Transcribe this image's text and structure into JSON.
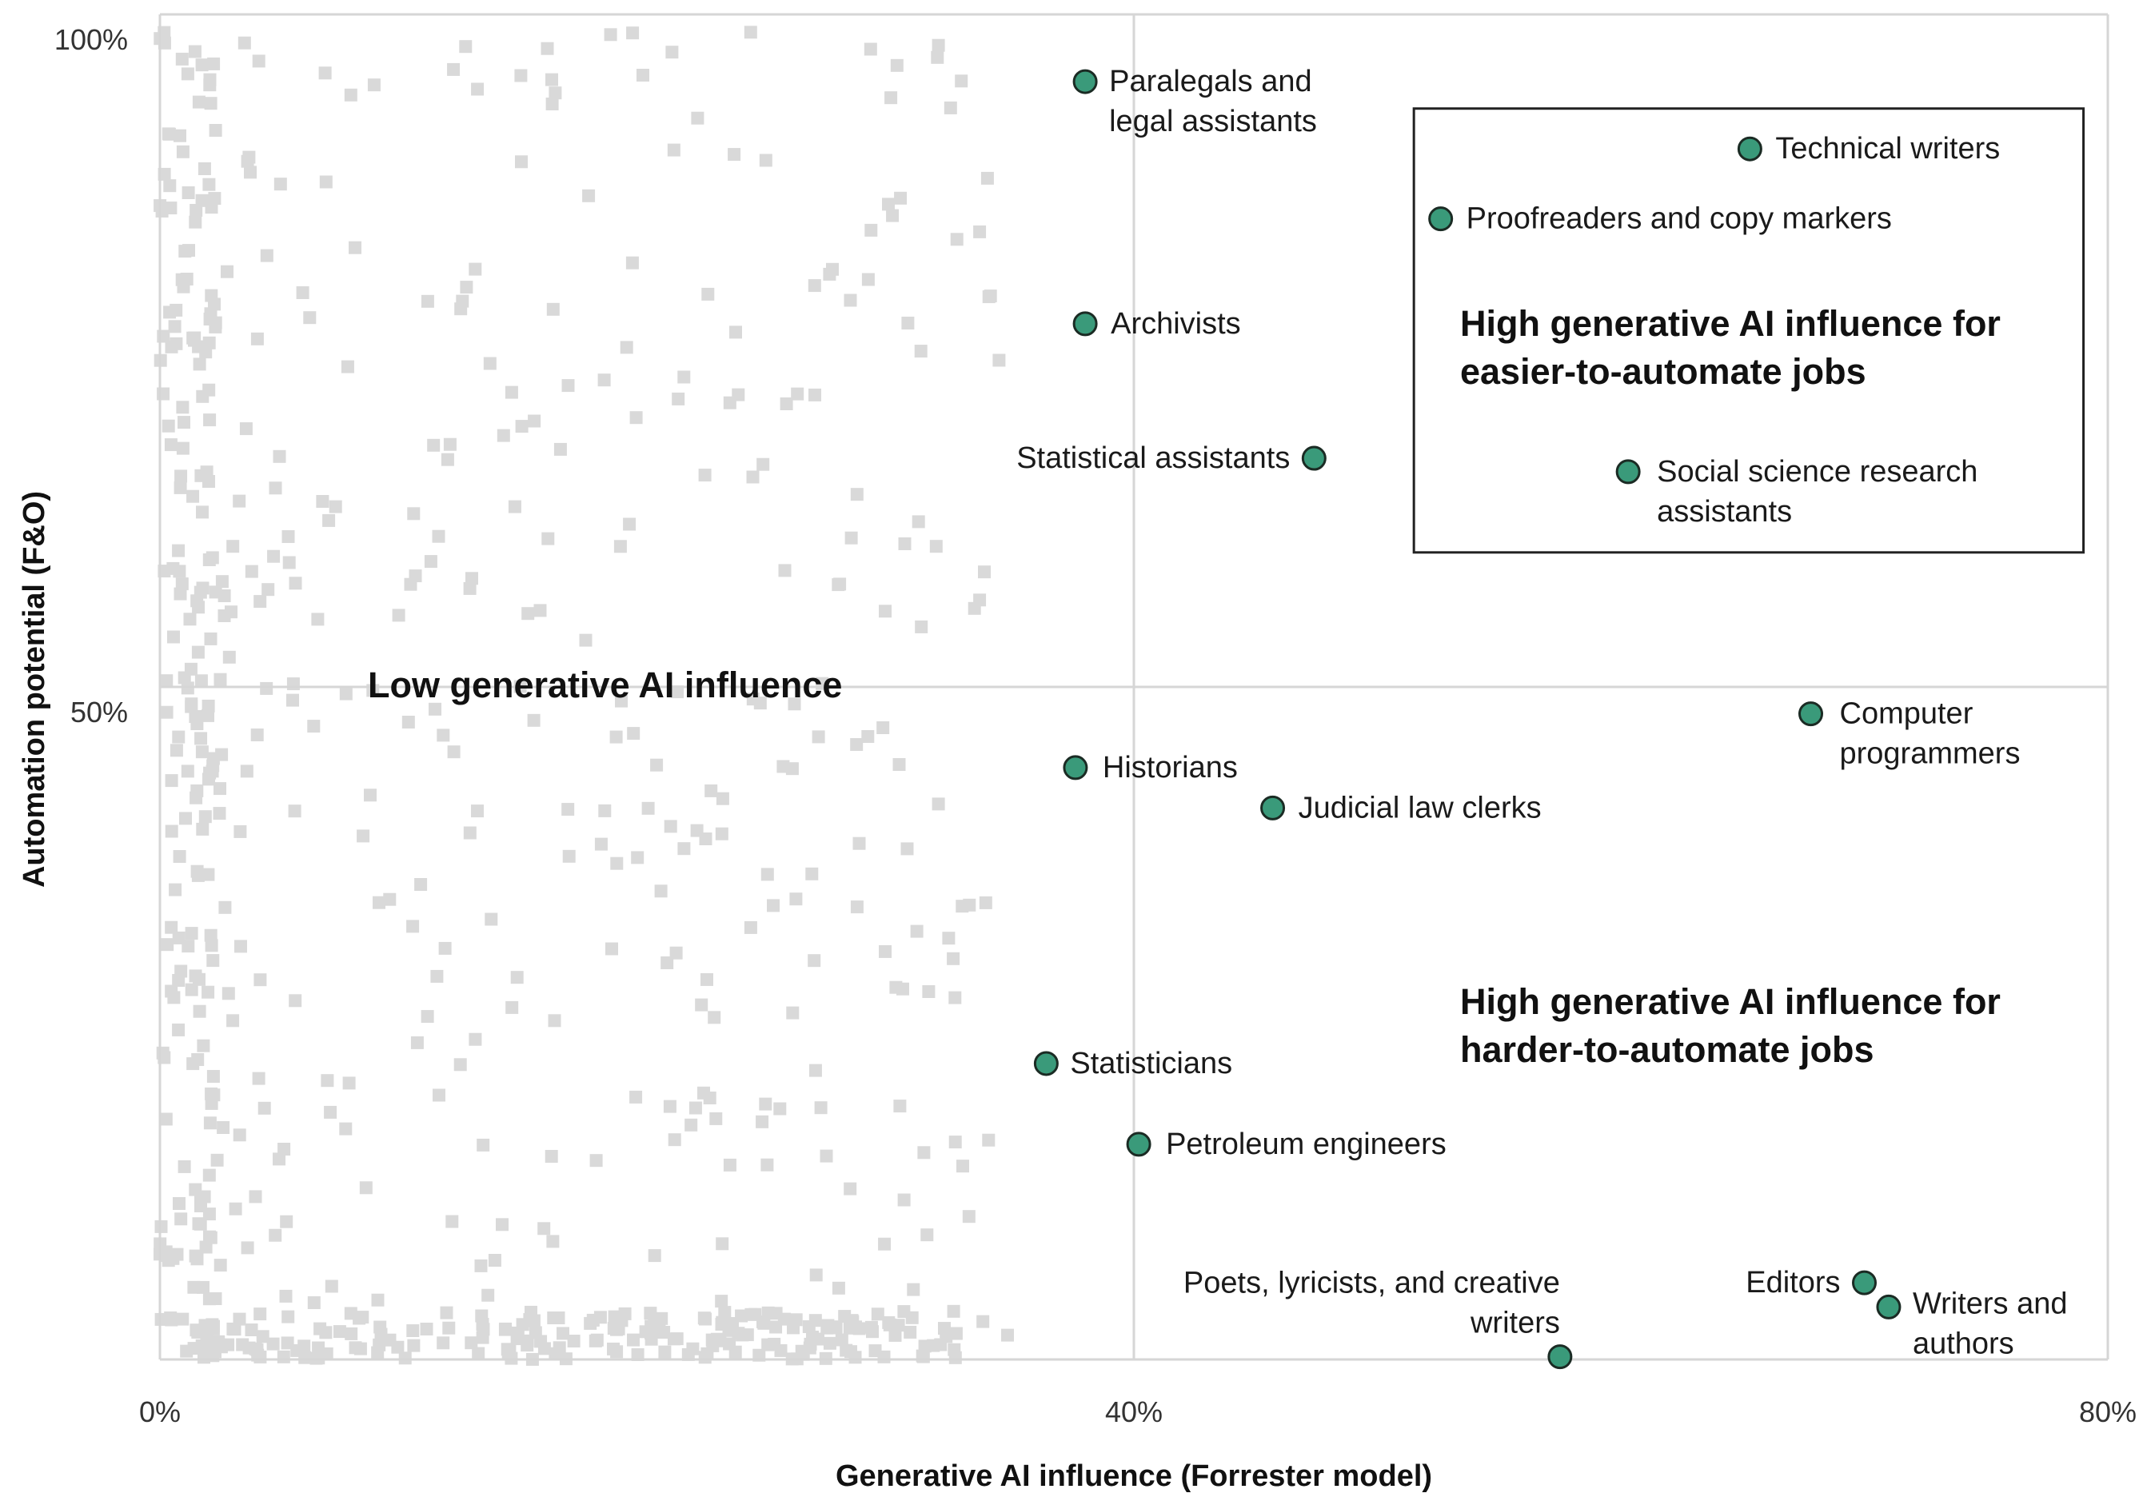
{
  "chart_data": {
    "type": "scatter",
    "title": "",
    "xlabel": "Generative AI influence (Forrester model)",
    "ylabel": "Automation potential (F&O)",
    "xlim": [
      0,
      80
    ],
    "ylim": [
      0,
      100
    ],
    "xticks": [
      "0%",
      "40%",
      "80%"
    ],
    "yticks": [
      "50%",
      "100%"
    ],
    "grid": true,
    "colors": {
      "highlight_fill": "#3a9a7a",
      "highlight_stroke": "#1b2b24",
      "background_marker": "#d9d9d9",
      "grid": "#d6d6d6",
      "box": "#222222"
    },
    "region_labels": [
      {
        "text": "Low generative AI influence"
      },
      {
        "text": "High generative AI influence for easier-to-automate jobs"
      },
      {
        "text": "High generative AI influence for harder-to-automate jobs"
      }
    ],
    "highlight_box": {
      "x": [
        51.5,
        79
      ],
      "y": [
        60,
        93
      ]
    },
    "highlighted": [
      {
        "label": "Paralegals and legal assistants",
        "x": 38,
        "y": 95
      },
      {
        "label": "Technical writers",
        "x": 65.3,
        "y": 90
      },
      {
        "label": "Proofreaders and copy markers",
        "x": 52.6,
        "y": 84.8
      },
      {
        "label": "Archivists",
        "x": 38,
        "y": 77
      },
      {
        "label": "Statistical assistants",
        "x": 47.4,
        "y": 67
      },
      {
        "label": "Social science research assistants",
        "x": 60.3,
        "y": 66
      },
      {
        "label": "Computer programmers",
        "x": 67.8,
        "y": 48
      },
      {
        "label": "Historians",
        "x": 37.6,
        "y": 44
      },
      {
        "label": "Judicial law clerks",
        "x": 45.7,
        "y": 41
      },
      {
        "label": "Statisticians",
        "x": 36.4,
        "y": 22
      },
      {
        "label": "Petroleum engineers",
        "x": 40.2,
        "y": 16
      },
      {
        "label": "Poets, lyricists, and creative writers",
        "x": 57.5,
        "y": 0.2
      },
      {
        "label": "Editors",
        "x": 70,
        "y": 5.7
      },
      {
        "label": "Writers and authors",
        "x": 71,
        "y": 3.9
      }
    ]
  }
}
